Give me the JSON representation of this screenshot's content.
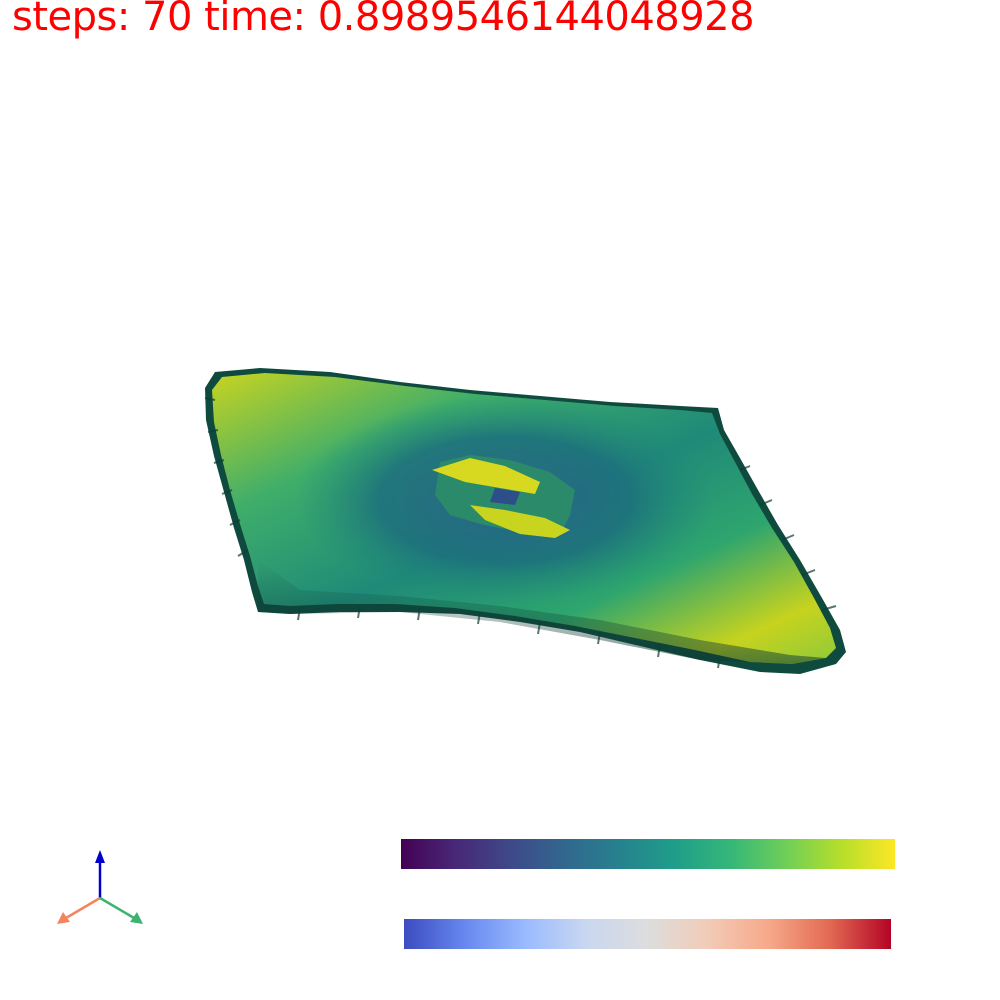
{
  "status": {
    "text": "steps: 70 time: 0.8989546144048928",
    "color": "#ff0000"
  },
  "colormaps": {
    "top": {
      "name": "viridis",
      "colors": [
        "#440154",
        "#482878",
        "#3e4989",
        "#31688e",
        "#26828e",
        "#1f9e89",
        "#35b779",
        "#6ece58",
        "#b5de2b",
        "#fde725"
      ]
    },
    "bottom": {
      "name": "coolwarm",
      "colors": [
        "#3b4cc0",
        "#6788ee",
        "#9abbff",
        "#c9d7f0",
        "#dddddd",
        "#f2cbb7",
        "#f7a889",
        "#e26952",
        "#b40426"
      ]
    }
  },
  "axes_colors": {
    "x": "#f4845f",
    "y": "#3cb371",
    "z": "#0000cd"
  }
}
